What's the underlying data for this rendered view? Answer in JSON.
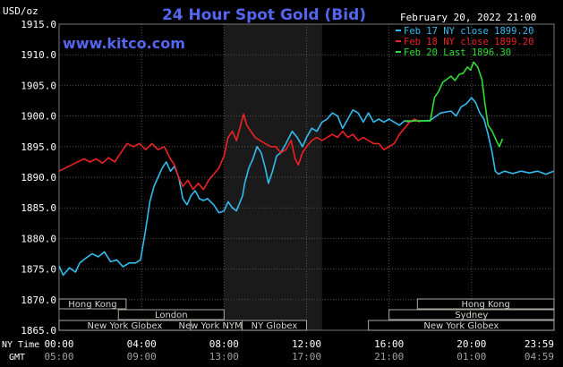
{
  "header": {
    "unit": "USD/oz",
    "title": "24 Hour Spot Gold (Bid)",
    "date": "February 20, 2022 21:00",
    "website": "www.kitco.com"
  },
  "legend": [
    {
      "label": "Feb 17 NY close 1899.20",
      "color": "#33bbee"
    },
    {
      "label": "Feb 18 NY close 1899.20",
      "color": "#ee2222"
    },
    {
      "label": "Feb 20 Last 1896.30",
      "color": "#33dd33"
    }
  ],
  "colors": {
    "background": "#000000",
    "plot_background": "#000000",
    "shade": "#1a1a1a",
    "grid": "#555555",
    "title": "#5566ee",
    "website": "#5566ee",
    "text": "#ffffff",
    "session_fill": "#000000",
    "session_border": "#a8a8a0",
    "session_text": "#d6d6d0",
    "axis_label": "#ffffff",
    "time_sub": "#a0a0a0"
  },
  "sessions": [
    {
      "label": "Hong Kong",
      "start": 0,
      "end": 6.5,
      "row": 0
    },
    {
      "label": "London",
      "start": 5.75,
      "end": 16.0,
      "row": 1
    },
    {
      "label": "New York Globex",
      "start": 0,
      "end": 12.75,
      "row": 2
    },
    {
      "label": "New York NYMEX",
      "start": 12.75,
      "end": 17.75,
      "row": 2
    },
    {
      "label": "NY Globex",
      "start": 17.75,
      "end": 24.0,
      "row": 2
    },
    {
      "label": "Hong Kong",
      "start": 34.75,
      "end": 48.0,
      "row": 0
    },
    {
      "label": "Sydney",
      "start": 32.0,
      "end": 48.0,
      "row": 1
    },
    {
      "label": "New York Globex",
      "start": 30.0,
      "end": 48.0,
      "row": 2
    }
  ],
  "time_axis": {
    "left_label_1": "NY Time",
    "left_label_2": "GMT",
    "ny_labels": [
      "00:00",
      "04:00",
      "08:00",
      "12:00",
      "16:00",
      "20:00",
      "23:59"
    ],
    "gmt_labels": [
      "05:00",
      "09:00",
      "13:00",
      "17:00",
      "21:00",
      "01:00",
      "04:59"
    ]
  },
  "chart_data": {
    "type": "line",
    "title": "24 Hour Spot Gold (Bid)",
    "ylabel": "USD/oz",
    "xlabel": "NY Time",
    "ylim": [
      1865.0,
      1915.0
    ],
    "xlim": [
      0,
      24
    ],
    "yticks": [
      "1865.0",
      "1870.0",
      "1875.0",
      "1880.0",
      "1885.0",
      "1890.0",
      "1895.0",
      "1900.0",
      "1905.0",
      "1910.0",
      "1915.0"
    ],
    "grid": true,
    "legend_position": "top-right",
    "shaded_region": [
      8.0,
      12.75
    ],
    "series": [
      {
        "name": "Feb 17 NY close 1899.20",
        "color": "#33bbee",
        "points": [
          [
            0,
            1875.5
          ],
          [
            0.2,
            1874.0
          ],
          [
            0.5,
            1875.2
          ],
          [
            0.8,
            1874.5
          ],
          [
            1.0,
            1876.0
          ],
          [
            1.3,
            1876.8
          ],
          [
            1.6,
            1877.5
          ],
          [
            1.9,
            1877.0
          ],
          [
            2.2,
            1877.8
          ],
          [
            2.5,
            1876.2
          ],
          [
            2.8,
            1876.5
          ],
          [
            3.1,
            1875.4
          ],
          [
            3.4,
            1876.0
          ],
          [
            3.7,
            1876.0
          ],
          [
            3.95,
            1876.5
          ],
          [
            4.2,
            1881.5
          ],
          [
            4.4,
            1886.0
          ],
          [
            4.6,
            1888.5
          ],
          [
            4.8,
            1890.0
          ],
          [
            5.0,
            1891.5
          ],
          [
            5.2,
            1892.5
          ],
          [
            5.4,
            1891.0
          ],
          [
            5.6,
            1891.8
          ],
          [
            5.8,
            1890.0
          ],
          [
            6.0,
            1886.5
          ],
          [
            6.2,
            1885.5
          ],
          [
            6.4,
            1887.0
          ],
          [
            6.6,
            1887.8
          ],
          [
            6.8,
            1886.5
          ],
          [
            7.0,
            1886.2
          ],
          [
            7.2,
            1886.5
          ],
          [
            7.5,
            1885.5
          ],
          [
            7.75,
            1884.2
          ],
          [
            8.0,
            1884.5
          ],
          [
            8.2,
            1886.0
          ],
          [
            8.4,
            1885.0
          ],
          [
            8.6,
            1884.5
          ],
          [
            8.9,
            1887.0
          ],
          [
            9.0,
            1889.0
          ],
          [
            9.2,
            1891.5
          ],
          [
            9.4,
            1893.0
          ],
          [
            9.6,
            1895.0
          ],
          [
            9.8,
            1894.0
          ],
          [
            10.0,
            1891.5
          ],
          [
            10.15,
            1889.0
          ],
          [
            10.35,
            1891.0
          ],
          [
            10.55,
            1893.5
          ],
          [
            10.75,
            1894.0
          ],
          [
            11.0,
            1895.5
          ],
          [
            11.3,
            1897.5
          ],
          [
            11.55,
            1896.5
          ],
          [
            11.8,
            1895.0
          ],
          [
            12.0,
            1896.5
          ],
          [
            12.25,
            1898.0
          ],
          [
            12.5,
            1897.5
          ],
          [
            12.75,
            1899.0
          ],
          [
            13.0,
            1899.5
          ],
          [
            13.25,
            1900.5
          ],
          [
            13.5,
            1900.0
          ],
          [
            13.75,
            1898.0
          ],
          [
            14.0,
            1899.5
          ],
          [
            14.25,
            1901.0
          ],
          [
            14.5,
            1900.5
          ],
          [
            14.75,
            1899.0
          ],
          [
            15.0,
            1900.5
          ],
          [
            15.25,
            1899.0
          ],
          [
            15.5,
            1899.5
          ],
          [
            15.75,
            1899.0
          ],
          [
            16.0,
            1899.5
          ],
          [
            16.25,
            1899.0
          ],
          [
            16.5,
            1898.5
          ],
          [
            16.75,
            1899.2
          ],
          [
            17.0,
            1899.0
          ],
          [
            17.25,
            1899.3
          ],
          [
            17.5,
            1899.2
          ],
          [
            18.0,
            1899.3
          ],
          [
            18.5,
            1900.5
          ],
          [
            19.0,
            1900.8
          ],
          [
            19.25,
            1900.0
          ],
          [
            19.5,
            1901.5
          ],
          [
            19.75,
            1902.0
          ],
          [
            20.0,
            1903.0
          ],
          [
            20.2,
            1902.2
          ],
          [
            20.4,
            1900.5
          ],
          [
            20.6,
            1899.5
          ],
          [
            20.8,
            1897.0
          ],
          [
            21.0,
            1894.0
          ],
          [
            21.15,
            1891.0
          ],
          [
            21.3,
            1890.5
          ],
          [
            21.6,
            1891.0
          ],
          [
            22.0,
            1890.6
          ],
          [
            22.4,
            1891.0
          ],
          [
            22.8,
            1890.7
          ],
          [
            23.2,
            1891.0
          ],
          [
            23.6,
            1890.5
          ],
          [
            23.98,
            1891.0
          ]
        ]
      },
      {
        "name": "Feb 18 NY close 1899.20",
        "color": "#ee2222",
        "points": [
          [
            0,
            1891.0
          ],
          [
            0.3,
            1891.5
          ],
          [
            0.6,
            1892.0
          ],
          [
            0.9,
            1892.5
          ],
          [
            1.2,
            1893.0
          ],
          [
            1.5,
            1892.5
          ],
          [
            1.8,
            1893.0
          ],
          [
            2.1,
            1892.3
          ],
          [
            2.4,
            1893.2
          ],
          [
            2.7,
            1892.5
          ],
          [
            3.0,
            1894.0
          ],
          [
            3.3,
            1895.5
          ],
          [
            3.6,
            1895.0
          ],
          [
            3.9,
            1895.5
          ],
          [
            4.2,
            1894.5
          ],
          [
            4.5,
            1895.5
          ],
          [
            4.8,
            1894.5
          ],
          [
            5.1,
            1895.0
          ],
          [
            5.4,
            1893.0
          ],
          [
            5.6,
            1892.0
          ],
          [
            5.8,
            1890.0
          ],
          [
            6.0,
            1888.5
          ],
          [
            6.25,
            1889.5
          ],
          [
            6.5,
            1888.0
          ],
          [
            6.75,
            1889.0
          ],
          [
            7.0,
            1888.0
          ],
          [
            7.25,
            1889.5
          ],
          [
            7.5,
            1890.5
          ],
          [
            7.75,
            1891.5
          ],
          [
            8.0,
            1893.5
          ],
          [
            8.2,
            1896.5
          ],
          [
            8.4,
            1897.5
          ],
          [
            8.6,
            1896.0
          ],
          [
            8.8,
            1898.5
          ],
          [
            8.95,
            1900.3
          ],
          [
            9.1,
            1898.5
          ],
          [
            9.3,
            1897.5
          ],
          [
            9.5,
            1896.5
          ],
          [
            9.75,
            1896.0
          ],
          [
            10.0,
            1895.5
          ],
          [
            10.25,
            1895.0
          ],
          [
            10.5,
            1895.0
          ],
          [
            10.75,
            1894.0
          ],
          [
            11.0,
            1894.5
          ],
          [
            11.25,
            1896.0
          ],
          [
            11.45,
            1893.0
          ],
          [
            11.6,
            1892.0
          ],
          [
            11.8,
            1894.0
          ],
          [
            12.0,
            1895.0
          ],
          [
            12.25,
            1896.0
          ],
          [
            12.5,
            1896.5
          ],
          [
            12.75,
            1896.0
          ],
          [
            13.0,
            1896.5
          ],
          [
            13.25,
            1897.0
          ],
          [
            13.5,
            1896.5
          ],
          [
            13.75,
            1897.5
          ],
          [
            14.0,
            1896.5
          ],
          [
            14.25,
            1897.0
          ],
          [
            14.5,
            1896.0
          ],
          [
            14.75,
            1896.5
          ],
          [
            15.0,
            1896.0
          ],
          [
            15.25,
            1895.5
          ],
          [
            15.5,
            1895.5
          ],
          [
            15.75,
            1894.5
          ],
          [
            16.0,
            1895.0
          ],
          [
            16.25,
            1895.5
          ],
          [
            16.5,
            1897.0
          ],
          [
            16.75,
            1898.0
          ],
          [
            17.0,
            1899.0
          ],
          [
            17.25,
            1899.5
          ],
          [
            17.5,
            1899.0
          ]
        ]
      },
      {
        "name": "Feb 20 Last 1896.30",
        "color": "#33dd33",
        "points": [
          [
            16.75,
            1899.2
          ],
          [
            17.25,
            1899.2
          ],
          [
            17.75,
            1899.2
          ],
          [
            18.0,
            1899.2
          ],
          [
            18.2,
            1903.0
          ],
          [
            18.4,
            1904.0
          ],
          [
            18.6,
            1905.5
          ],
          [
            18.8,
            1906.0
          ],
          [
            19.0,
            1906.5
          ],
          [
            19.2,
            1905.8
          ],
          [
            19.4,
            1906.8
          ],
          [
            19.6,
            1907.0
          ],
          [
            19.8,
            1908.0
          ],
          [
            19.95,
            1907.5
          ],
          [
            20.1,
            1908.8
          ],
          [
            20.3,
            1908.0
          ],
          [
            20.5,
            1906.0
          ],
          [
            20.65,
            1902.0
          ],
          [
            20.8,
            1898.5
          ],
          [
            21.0,
            1897.5
          ],
          [
            21.2,
            1896.0
          ],
          [
            21.35,
            1895.0
          ],
          [
            21.5,
            1896.3
          ]
        ]
      }
    ]
  }
}
